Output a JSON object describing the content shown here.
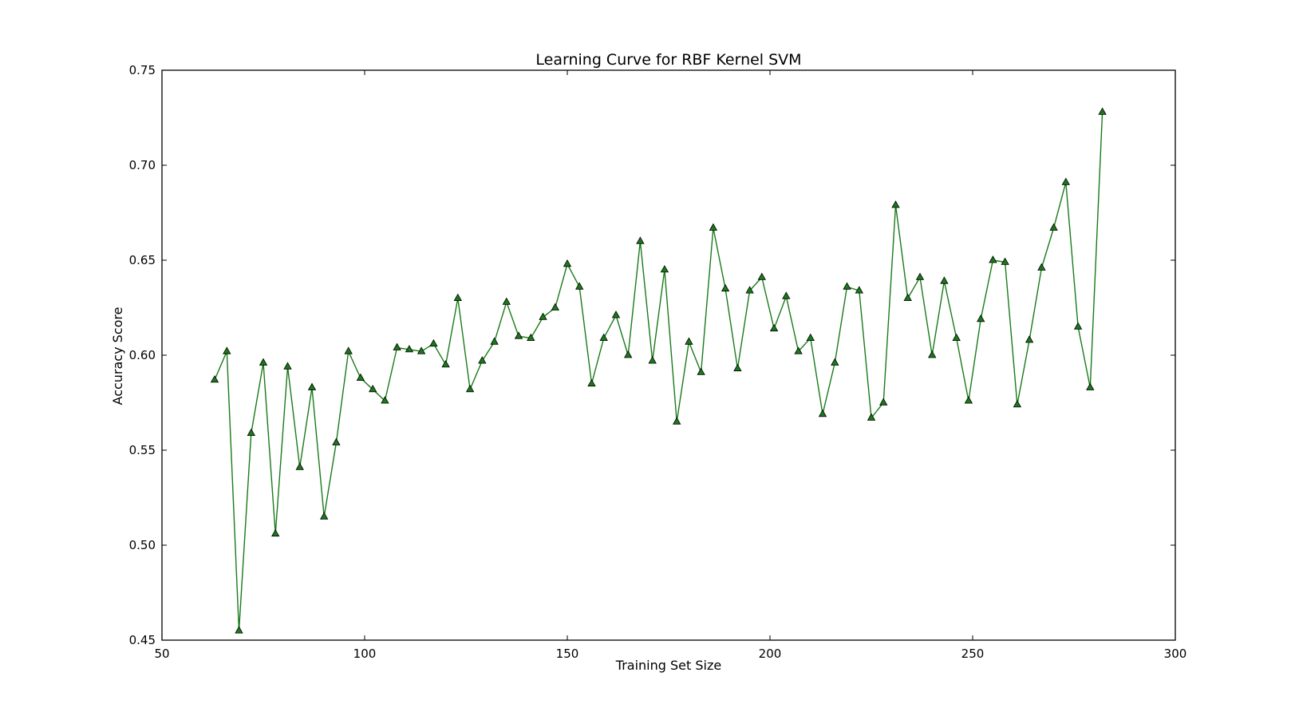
{
  "chart_data": {
    "type": "line",
    "title": "Learning Curve for RBF Kernel SVM",
    "xlabel": "Training Set Size",
    "ylabel": "Accuracy Score",
    "xlim": [
      50,
      300
    ],
    "ylim": [
      0.45,
      0.75
    ],
    "xticks": [
      50,
      100,
      150,
      200,
      250,
      300
    ],
    "xtick_labels": [
      "50",
      "100",
      "150",
      "200",
      "250",
      "300"
    ],
    "yticks": [
      0.45,
      0.5,
      0.55,
      0.6,
      0.65,
      0.7,
      0.75
    ],
    "ytick_labels": [
      "0.45",
      "0.50",
      "0.55",
      "0.60",
      "0.65",
      "0.70",
      "0.75"
    ],
    "grid": false,
    "line_color": "#1a7a1a",
    "marker_color": "#1a7a1a",
    "marker": "triangle",
    "series": [
      {
        "x": [
          63,
          66,
          69,
          72,
          75,
          78,
          81,
          84,
          87,
          90,
          93,
          96,
          99,
          102,
          105,
          108,
          111,
          114,
          117,
          120,
          123,
          126,
          129,
          132,
          135,
          138,
          141,
          144,
          147,
          150,
          153,
          156,
          159,
          162,
          165,
          168,
          171,
          174,
          177,
          180,
          183,
          186,
          189,
          192,
          195,
          198,
          201,
          204,
          207,
          210,
          213,
          216,
          219,
          222,
          225,
          228,
          231,
          234,
          237,
          240,
          243,
          246,
          249,
          252,
          255,
          258,
          261,
          264,
          267,
          270,
          273,
          276,
          279,
          282
        ],
        "values": [
          0.587,
          0.602,
          0.455,
          0.559,
          0.596,
          0.506,
          0.594,
          0.541,
          0.583,
          0.515,
          0.554,
          0.602,
          0.588,
          0.582,
          0.576,
          0.604,
          0.603,
          0.602,
          0.606,
          0.595,
          0.63,
          0.582,
          0.597,
          0.607,
          0.628,
          0.61,
          0.609,
          0.62,
          0.625,
          0.648,
          0.636,
          0.585,
          0.609,
          0.621,
          0.6,
          0.66,
          0.597,
          0.645,
          0.565,
          0.607,
          0.591,
          0.667,
          0.635,
          0.593,
          0.634,
          0.641,
          0.614,
          0.631,
          0.602,
          0.609,
          0.569,
          0.596,
          0.636,
          0.634,
          0.567,
          0.575,
          0.679,
          0.63,
          0.641,
          0.6,
          0.639,
          0.609,
          0.576,
          0.619,
          0.65,
          0.649,
          0.574,
          0.608,
          0.646,
          0.667,
          0.691,
          0.615,
          0.583,
          0.728
        ]
      }
    ]
  }
}
